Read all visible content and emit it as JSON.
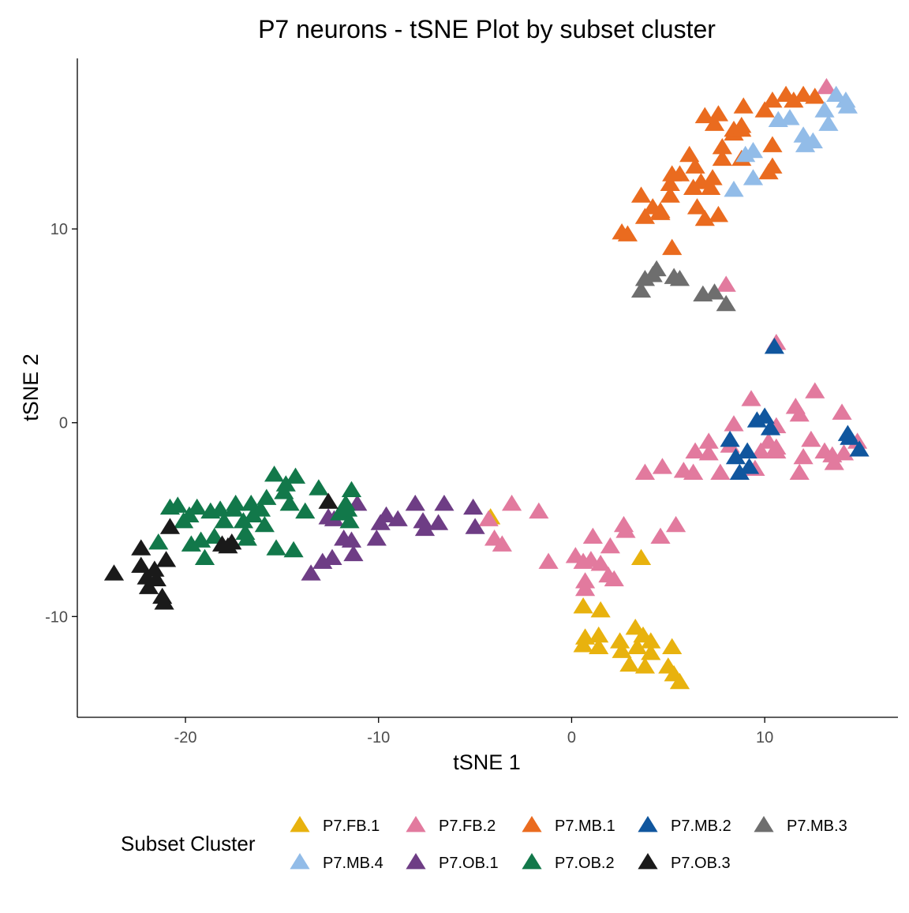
{
  "chart_data": {
    "type": "scatter",
    "title": "P7 neurons - tSNE Plot by subset cluster",
    "xlabel": "tSNE 1",
    "ylabel": "tSNE 2",
    "xlim": [
      -25.6,
      16.9
    ],
    "ylim": [
      -15.2,
      18.8
    ],
    "x_ticks": [
      -20,
      -10,
      0,
      10
    ],
    "y_ticks": [
      -10,
      0,
      10
    ],
    "grid": false,
    "marker": "triangle",
    "legend": {
      "title": "Subset Cluster",
      "position": "bottom"
    },
    "series": [
      {
        "name": "P7.FB.1",
        "color": "#E8B20E",
        "points": [
          [
            -4.2,
            -4.9
          ],
          [
            3.6,
            -7.0
          ],
          [
            0.6,
            -9.5
          ],
          [
            1.5,
            -9.7
          ],
          [
            3.3,
            -10.6
          ],
          [
            0.7,
            -11.1
          ],
          [
            1.4,
            -11.0
          ],
          [
            2.5,
            -11.3
          ],
          [
            3.7,
            -11.0
          ],
          [
            4.1,
            -11.3
          ],
          [
            0.6,
            -11.5
          ],
          [
            1.4,
            -11.6
          ],
          [
            2.6,
            -11.8
          ],
          [
            3.4,
            -11.6
          ],
          [
            4.1,
            -11.9
          ],
          [
            5.2,
            -11.6
          ],
          [
            3.0,
            -12.5
          ],
          [
            3.8,
            -12.6
          ],
          [
            5.0,
            -12.6
          ],
          [
            5.3,
            -13.0
          ],
          [
            5.6,
            -13.4
          ]
        ]
      },
      {
        "name": "P7.FB.2",
        "color": "#E27A9E",
        "points": [
          [
            -4.3,
            -5.0
          ],
          [
            -3.1,
            -4.2
          ],
          [
            -1.7,
            -4.6
          ],
          [
            -4.0,
            -6.0
          ],
          [
            -3.6,
            -6.3
          ],
          [
            -1.2,
            -7.2
          ],
          [
            0.2,
            -6.9
          ],
          [
            0.6,
            -7.2
          ],
          [
            1.0,
            -7.1
          ],
          [
            1.5,
            -7.3
          ],
          [
            1.1,
            -5.9
          ],
          [
            2.0,
            -6.4
          ],
          [
            2.7,
            -5.3
          ],
          [
            2.8,
            -5.6
          ],
          [
            4.6,
            -5.9
          ],
          [
            5.4,
            -5.3
          ],
          [
            0.7,
            -8.2
          ],
          [
            1.9,
            -7.9
          ],
          [
            2.2,
            -8.1
          ],
          [
            0.7,
            -8.6
          ],
          [
            3.8,
            -2.6
          ],
          [
            4.7,
            -2.3
          ],
          [
            5.8,
            -2.5
          ],
          [
            6.3,
            -2.6
          ],
          [
            6.4,
            -1.5
          ],
          [
            7.1,
            -1.6
          ],
          [
            7.1,
            -1.0
          ],
          [
            7.7,
            -2.6
          ],
          [
            8.2,
            -1.2
          ],
          [
            8.4,
            -0.1
          ],
          [
            9.3,
            1.2
          ],
          [
            9.5,
            -2.4
          ],
          [
            9.8,
            -1.5
          ],
          [
            10.2,
            -1.0
          ],
          [
            10.6,
            -0.2
          ],
          [
            10.6,
            -1.3
          ],
          [
            10.6,
            -1.5
          ],
          [
            11.6,
            0.8
          ],
          [
            11.8,
            0.4
          ],
          [
            12.0,
            -1.8
          ],
          [
            11.8,
            -2.6
          ],
          [
            12.4,
            -0.9
          ],
          [
            12.6,
            1.6
          ],
          [
            13.1,
            -1.5
          ],
          [
            13.5,
            -1.7
          ],
          [
            13.6,
            -2.1
          ],
          [
            14.0,
            0.5
          ],
          [
            14.1,
            -1.6
          ],
          [
            14.8,
            -1.0
          ],
          [
            8.0,
            7.1
          ],
          [
            10.6,
            4.1
          ],
          [
            13.2,
            17.3
          ]
        ]
      },
      {
        "name": "P7.MB.1",
        "color": "#EA6B1F",
        "points": [
          [
            2.6,
            9.8
          ],
          [
            2.9,
            9.7
          ],
          [
            3.6,
            11.7
          ],
          [
            3.8,
            10.6
          ],
          [
            4.2,
            11.1
          ],
          [
            4.6,
            10.8
          ],
          [
            4.6,
            10.9
          ],
          [
            5.1,
            11.7
          ],
          [
            5.1,
            12.3
          ],
          [
            5.2,
            12.8
          ],
          [
            5.2,
            9.0
          ],
          [
            5.6,
            12.8
          ],
          [
            6.1,
            13.8
          ],
          [
            6.3,
            12.1
          ],
          [
            6.5,
            11.1
          ],
          [
            6.4,
            13.2
          ],
          [
            6.7,
            12.4
          ],
          [
            6.9,
            10.5
          ],
          [
            6.9,
            15.8
          ],
          [
            7.2,
            12.1
          ],
          [
            7.3,
            12.6
          ],
          [
            7.4,
            15.4
          ],
          [
            7.6,
            15.9
          ],
          [
            7.6,
            10.7
          ],
          [
            7.8,
            14.2
          ],
          [
            7.8,
            13.6
          ],
          [
            8.4,
            14.9
          ],
          [
            8.4,
            15.1
          ],
          [
            8.8,
            15.1
          ],
          [
            8.8,
            15.3
          ],
          [
            8.8,
            13.6
          ],
          [
            8.9,
            16.3
          ],
          [
            10.2,
            12.9
          ],
          [
            10.4,
            13.2
          ],
          [
            10.4,
            14.3
          ],
          [
            10.0,
            16.1
          ],
          [
            10.4,
            16.6
          ],
          [
            11.1,
            16.9
          ],
          [
            11.5,
            16.6
          ],
          [
            12.0,
            16.9
          ],
          [
            12.6,
            16.8
          ]
        ]
      },
      {
        "name": "P7.MB.2",
        "color": "#10569E",
        "points": [
          [
            8.2,
            -0.9
          ],
          [
            8.5,
            -1.8
          ],
          [
            8.7,
            -2.6
          ],
          [
            9.1,
            -1.5
          ],
          [
            9.2,
            -2.3
          ],
          [
            9.6,
            0.1
          ],
          [
            10.0,
            0.3
          ],
          [
            10.3,
            -0.3
          ],
          [
            10.5,
            3.9
          ],
          [
            14.3,
            -0.6
          ],
          [
            14.4,
            -0.8
          ],
          [
            14.9,
            -1.4
          ]
        ]
      },
      {
        "name": "P7.MB.3",
        "color": "#6E6E6E",
        "points": [
          [
            3.6,
            6.8
          ],
          [
            3.8,
            7.4
          ],
          [
            4.2,
            7.6
          ],
          [
            4.4,
            7.9
          ],
          [
            5.3,
            7.5
          ],
          [
            5.6,
            7.4
          ],
          [
            6.8,
            6.6
          ],
          [
            7.4,
            6.7
          ],
          [
            8.0,
            6.1
          ]
        ]
      },
      {
        "name": "P7.MB.4",
        "color": "#92BCE8",
        "points": [
          [
            8.4,
            12.0
          ],
          [
            9.0,
            13.8
          ],
          [
            9.4,
            12.6
          ],
          [
            9.4,
            14.0
          ],
          [
            10.7,
            15.6
          ],
          [
            11.3,
            15.7
          ],
          [
            12.0,
            14.8
          ],
          [
            12.1,
            14.3
          ],
          [
            12.5,
            14.5
          ],
          [
            13.1,
            16.1
          ],
          [
            13.3,
            15.4
          ],
          [
            13.7,
            16.9
          ],
          [
            14.2,
            16.6
          ],
          [
            14.3,
            16.3
          ]
        ]
      },
      {
        "name": "P7.OB.1",
        "color": "#6E3D85",
        "points": [
          [
            -13.5,
            -7.8
          ],
          [
            -12.9,
            -7.2
          ],
          [
            -12.4,
            -7.0
          ],
          [
            -12.6,
            -4.9
          ],
          [
            -12.3,
            -5.0
          ],
          [
            -11.8,
            -6.0
          ],
          [
            -11.4,
            -6.1
          ],
          [
            -11.3,
            -6.8
          ],
          [
            -11.1,
            -4.2
          ],
          [
            -10.1,
            -6.0
          ],
          [
            -9.9,
            -5.2
          ],
          [
            -9.6,
            -4.8
          ],
          [
            -9.0,
            -5.0
          ],
          [
            -8.1,
            -4.2
          ],
          [
            -7.7,
            -5.1
          ],
          [
            -7.6,
            -5.5
          ],
          [
            -6.9,
            -5.2
          ],
          [
            -6.6,
            -4.2
          ],
          [
            -5.1,
            -4.4
          ],
          [
            -5.0,
            -5.4
          ]
        ]
      },
      {
        "name": "P7.OB.2",
        "color": "#12784A",
        "points": [
          [
            -21.4,
            -6.2
          ],
          [
            -20.8,
            -4.4
          ],
          [
            -20.4,
            -4.3
          ],
          [
            -20.1,
            -5.1
          ],
          [
            -19.7,
            -6.3
          ],
          [
            -19.8,
            -4.8
          ],
          [
            -19.4,
            -4.4
          ],
          [
            -19.2,
            -6.1
          ],
          [
            -19.0,
            -7.0
          ],
          [
            -18.7,
            -4.6
          ],
          [
            -18.5,
            -5.9
          ],
          [
            -18.2,
            -4.5
          ],
          [
            -18.0,
            -5.1
          ],
          [
            -17.5,
            -4.5
          ],
          [
            -17.4,
            -4.2
          ],
          [
            -17.0,
            -5.1
          ],
          [
            -16.9,
            -5.7
          ],
          [
            -16.8,
            -6.0
          ],
          [
            -16.6,
            -4.2
          ],
          [
            -16.5,
            -4.8
          ],
          [
            -16.1,
            -4.5
          ],
          [
            -15.8,
            -3.9
          ],
          [
            -15.9,
            -5.3
          ],
          [
            -15.4,
            -2.7
          ],
          [
            -15.3,
            -6.5
          ],
          [
            -14.9,
            -3.6
          ],
          [
            -14.8,
            -3.2
          ],
          [
            -14.6,
            -4.2
          ],
          [
            -14.3,
            -2.8
          ],
          [
            -14.4,
            -6.6
          ],
          [
            -13.8,
            -4.6
          ],
          [
            -13.1,
            -3.4
          ],
          [
            -12.0,
            -4.7
          ],
          [
            -11.6,
            -4.5
          ],
          [
            -11.5,
            -5.1
          ],
          [
            -11.4,
            -3.5
          ],
          [
            -11.7,
            -4.2
          ]
        ]
      },
      {
        "name": "P7.OB.3",
        "color": "#1A1A1A",
        "points": [
          [
            -23.7,
            -7.8
          ],
          [
            -22.3,
            -6.5
          ],
          [
            -22.3,
            -7.4
          ],
          [
            -22.0,
            -8.0
          ],
          [
            -21.9,
            -8.5
          ],
          [
            -21.6,
            -7.6
          ],
          [
            -21.5,
            -8.1
          ],
          [
            -21.2,
            -9.0
          ],
          [
            -21.1,
            -9.3
          ],
          [
            -21.0,
            -7.1
          ],
          [
            -20.8,
            -5.4
          ],
          [
            -18.1,
            -6.3
          ],
          [
            -17.8,
            -6.4
          ],
          [
            -17.6,
            -6.2
          ],
          [
            -12.6,
            -4.1
          ]
        ]
      }
    ]
  }
}
